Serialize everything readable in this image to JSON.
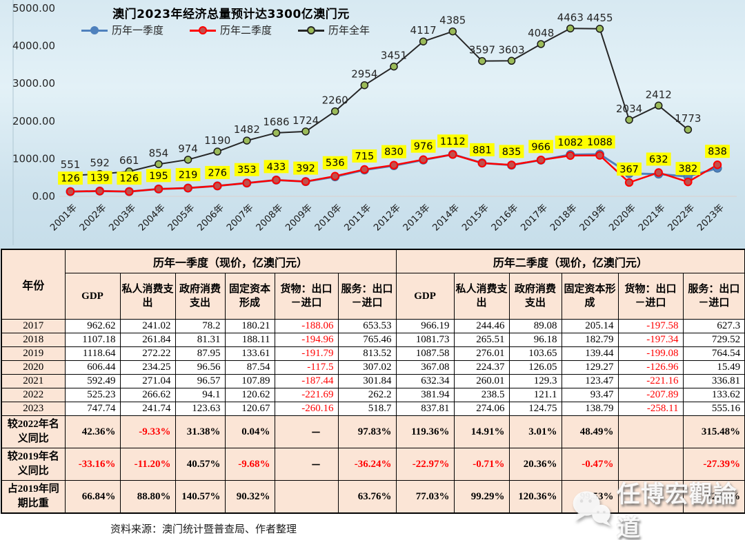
{
  "chart": {
    "title": "澳门2023年经济总量预计达3300亿澳门元",
    "legend": [
      {
        "label": "历年一季度",
        "line": "#4F81BD",
        "marker": "#4F81BD"
      },
      {
        "label": "历年二季度",
        "line": "#FF0000",
        "marker": "#C0504D"
      },
      {
        "label": "历年全年",
        "line": "#262626",
        "marker": "#9BBB59"
      }
    ],
    "y_ticks": [
      "5000.00",
      "4000.00",
      "3000.00",
      "2000.00",
      "1000.00",
      "0.00"
    ],
    "label_highlight_color": "#FFFF00"
  },
  "chart_data": {
    "type": "line",
    "categories": [
      "2001年",
      "2002年",
      "2003年",
      "2004年",
      "2005年",
      "2006年",
      "2007年",
      "2008年",
      "2009年",
      "2010年",
      "2011年",
      "2012年",
      "2013年",
      "2014年",
      "2015年",
      "2016年",
      "2017年",
      "2018年",
      "2019年",
      "2020年",
      "2021年",
      "2022年",
      "2023年"
    ],
    "ylim": [
      0,
      5000
    ],
    "ylabel": "",
    "xlabel": "",
    "legend_position": "top-left",
    "grid": false,
    "series": [
      {
        "name": "历年一季度",
        "color": "#4F81BD",
        "marker_fill": "#4F81BD",
        "labels": "none",
        "values": [
          126,
          139,
          126,
          195,
          219,
          276,
          353,
          433,
          392,
          520,
          700,
          815,
          965,
          1115,
          885,
          828,
          962.62,
          1107.18,
          1118.64,
          606.44,
          592.49,
          525.23,
          747.74
        ]
      },
      {
        "name": "历年二季度",
        "color": "#FF0000",
        "marker_fill": "#C0504D",
        "labels": "yellow",
        "values": [
          126,
          139,
          126,
          195,
          219,
          276,
          353,
          433,
          392,
          536,
          715,
          830,
          976,
          1112,
          881,
          835,
          966,
          1082,
          1088,
          367,
          632,
          382,
          838
        ]
      },
      {
        "name": "历年全年",
        "color": "#262626",
        "marker_fill": "#9BBB59",
        "labels": "plain",
        "values": [
          551,
          592,
          661,
          854,
          974,
          1190,
          1482,
          1686,
          1724,
          2260,
          2954,
          3451,
          4117,
          4385,
          3597,
          3603,
          4048,
          4463,
          4455,
          2034,
          2412,
          1773,
          null
        ]
      }
    ]
  },
  "table": {
    "year_col_header": "年份",
    "groups": [
      {
        "title": "历年一季度（现价，亿澳门元）"
      },
      {
        "title": "历年二季度（现价，亿澳门元）"
      }
    ],
    "sub_headers": [
      "GDP",
      "私人消费支出",
      "政府消费支出",
      "固定资本形成",
      "货物：出口－进口",
      "服务：出口－进口"
    ],
    "rows": [
      {
        "label": "2017",
        "type": "year",
        "cells": [
          "962.62",
          "241.02",
          "78.2",
          "180.21",
          "-188.06",
          "653.53",
          "966.19",
          "244.46",
          "89.08",
          "205.14",
          "-197.58",
          "627.3"
        ]
      },
      {
        "label": "2018",
        "type": "year",
        "cells": [
          "1107.18",
          "261.84",
          "81.31",
          "188.11",
          "-194.96",
          "765.46",
          "1081.73",
          "265.51",
          "96.18",
          "182.79",
          "-197.34",
          "729.52"
        ]
      },
      {
        "label": "2019",
        "type": "year",
        "cells": [
          "1118.64",
          "272.22",
          "87.95",
          "133.61",
          "-191.79",
          "813.52",
          "1087.58",
          "276.01",
          "103.65",
          "139.44",
          "-199.08",
          "764.54"
        ]
      },
      {
        "label": "2020",
        "type": "year",
        "cells": [
          "606.44",
          "234.25",
          "96.56",
          "87.54",
          "-117.5",
          "307.02",
          "367.08",
          "224.37",
          "126.05",
          "129.27",
          "-126.96",
          "15.49"
        ]
      },
      {
        "label": "2021",
        "type": "year",
        "cells": [
          "592.49",
          "271.04",
          "96.57",
          "107.89",
          "-187.44",
          "301.84",
          "632.34",
          "260.01",
          "129.3",
          "123.47",
          "-221.16",
          "336.81"
        ]
      },
      {
        "label": "2022",
        "type": "year",
        "cells": [
          "525.23",
          "266.62",
          "94.1",
          "120.62",
          "-221.69",
          "262.2",
          "381.94",
          "238.5",
          "121.1",
          "93.47",
          "-207.89",
          "133.62"
        ]
      },
      {
        "label": "2023",
        "type": "year",
        "cells": [
          "747.74",
          "241.74",
          "123.63",
          "120.67",
          "-260.16",
          "518.7",
          "837.81",
          "274.06",
          "124.75",
          "138.79",
          "-258.11",
          "555.16"
        ]
      },
      {
        "label": "较2022年名义同比",
        "type": "percent",
        "cells": [
          "42.36%",
          "-9.33%",
          "31.38%",
          "0.04%",
          "－",
          "97.83%",
          "119.36%",
          "14.91%",
          "3.01%",
          "48.49%",
          "",
          "315.48%"
        ]
      },
      {
        "label": "较2019年名义同比",
        "type": "percent",
        "cells": [
          "-33.16%",
          "-11.20%",
          "40.57%",
          "-9.68%",
          "－",
          "-36.24%",
          "-22.97%",
          "-0.71%",
          "20.36%",
          "-0.47%",
          "",
          "-27.39%"
        ]
      },
      {
        "label": "占2019年同期比重",
        "type": "percent",
        "cells": [
          "66.84%",
          "88.80%",
          "140.57%",
          "90.32%",
          "",
          "63.76%",
          "77.03%",
          "99.29%",
          "120.36%",
          "99.53%",
          "",
          "72.61%"
        ]
      }
    ],
    "negative_color": "#FF0000",
    "header_bg": "#FBE5D6"
  },
  "footer": {
    "source": "资料来源：澳门统计暨普查局、作者整理"
  },
  "watermark": {
    "text": "任博宏觀論道",
    "icon": "wechat-icon"
  }
}
